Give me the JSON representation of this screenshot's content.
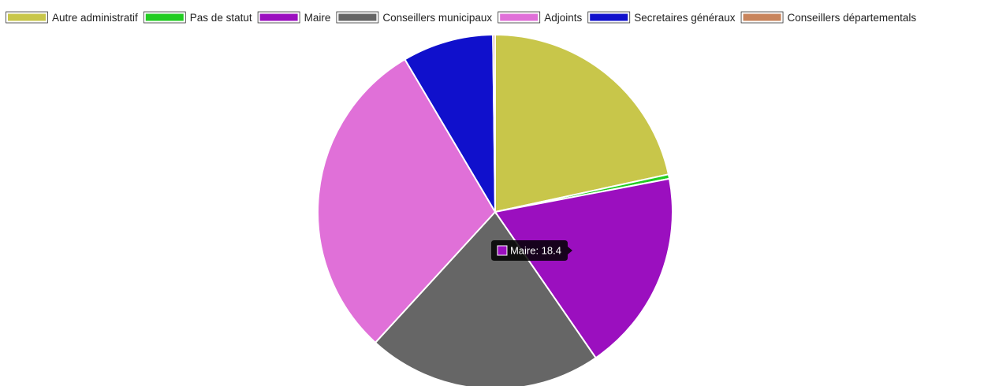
{
  "chart_data": {
    "type": "pie",
    "categories": [
      "Autre administratif",
      "Pas de statut",
      "Maire",
      "Conseillers municipaux",
      "Adjoints",
      "Secretaires généraux",
      "Conseillers départementals"
    ],
    "values": [
      21.6,
      0.4,
      18.4,
      21.4,
      29.7,
      8.3,
      0.2
    ],
    "colors": [
      "#c8c64a",
      "#22cc22",
      "#9b0fbf",
      "#666666",
      "#e070d8",
      "#1010cc",
      "#c8845c"
    ],
    "legend_placement": "top",
    "start_angle_deg": 0,
    "direction": "clockwise",
    "title": "",
    "tooltip": {
      "category": "Maire",
      "value": "18.4",
      "text": "Maire: 18.4",
      "color": "#9b0fbf"
    }
  }
}
